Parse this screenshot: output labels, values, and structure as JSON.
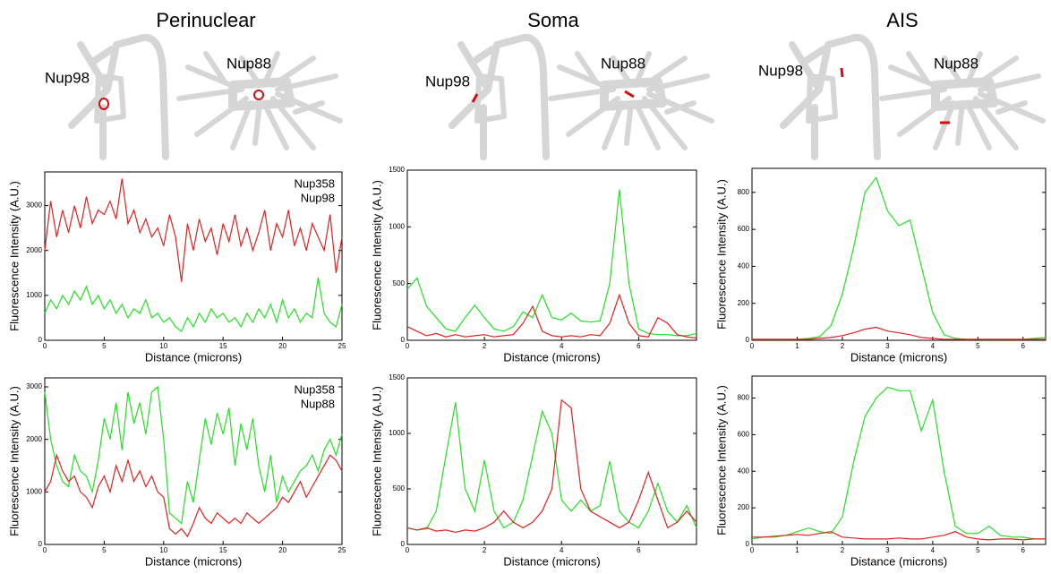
{
  "panel_titles": [
    "Perinuclear",
    "Soma",
    "AIS"
  ],
  "cell_labels": [
    [
      "Nup98",
      "Nup88"
    ],
    [
      "Nup98",
      "Nup88"
    ],
    [
      "Nup98",
      "Nup88"
    ]
  ],
  "chart_data": [
    {
      "type": "line",
      "xlabel": "Distance (microns)",
      "ylabel": "Fluorescence Intensity (A.U.)",
      "legend": "upper right",
      "x": [
        0,
        0.5,
        1,
        1.5,
        2,
        2.5,
        3,
        3.5,
        4,
        4.5,
        5,
        5.5,
        6,
        6.5,
        7,
        7.5,
        8,
        8.5,
        9,
        9.5,
        10,
        10.5,
        11,
        11.5,
        12,
        12.5,
        13,
        13.5,
        14,
        14.5,
        15,
        15.5,
        16,
        16.5,
        17,
        17.5,
        18,
        18.5,
        19,
        19.5,
        20,
        20.5,
        21,
        21.5,
        22,
        22.5,
        23,
        23.5,
        24,
        24.5,
        25
      ],
      "series": [
        {
          "name": "Nup358",
          "color": "#22e022",
          "values": [
            600,
            900,
            700,
            1000,
            800,
            1100,
            900,
            1200,
            800,
            1000,
            700,
            900,
            600,
            800,
            500,
            700,
            600,
            900,
            500,
            600,
            400,
            500,
            300,
            200,
            500,
            300,
            600,
            400,
            700,
            500,
            600,
            400,
            500,
            300,
            600,
            400,
            700,
            500,
            800,
            400,
            900,
            500,
            700,
            400,
            600,
            500,
            1400,
            600,
            400,
            300,
            800
          ]
        },
        {
          "name": "Nup98",
          "color": "#e02020",
          "values": [
            2000,
            3100,
            2300,
            2900,
            2400,
            3000,
            2500,
            3200,
            2600,
            2900,
            2800,
            3100,
            2700,
            3600,
            2600,
            2900,
            2400,
            2700,
            2300,
            2500,
            2100,
            2800,
            2300,
            1300,
            2600,
            2000,
            2700,
            2200,
            2500,
            1900,
            2600,
            2200,
            2800,
            2100,
            2500,
            2000,
            2400,
            2900,
            2000,
            2600,
            2300,
            2900,
            2100,
            2500,
            2000,
            2600,
            2300,
            2000,
            2800,
            1500,
            2300
          ]
        }
      ],
      "xlim": [
        0,
        25
      ],
      "xticks": [
        0,
        5,
        10,
        15,
        20,
        25
      ],
      "ylim": [
        0,
        3750
      ],
      "yticks": [
        0,
        1000,
        2000,
        3000
      ]
    },
    {
      "type": "line",
      "xlabel": "Distance (microns)",
      "ylabel": "Fluorescence Intensity (A.U.)",
      "x": [
        0,
        0.25,
        0.5,
        0.75,
        1,
        1.25,
        1.5,
        1.75,
        2,
        2.25,
        2.5,
        2.75,
        3,
        3.25,
        3.5,
        3.75,
        4,
        4.25,
        4.5,
        4.75,
        5,
        5.25,
        5.5,
        5.75,
        6,
        6.25,
        6.5,
        6.75,
        7,
        7.25,
        7.5
      ],
      "series": [
        {
          "color": "#22e022",
          "values": [
            450,
            550,
            300,
            200,
            100,
            80,
            200,
            310,
            200,
            100,
            80,
            120,
            250,
            200,
            400,
            200,
            180,
            240,
            170,
            160,
            170,
            500,
            1330,
            500,
            100,
            60,
            50,
            50,
            40,
            40,
            60
          ]
        },
        {
          "color": "#e02020",
          "values": [
            120,
            80,
            40,
            60,
            30,
            50,
            30,
            40,
            50,
            30,
            40,
            50,
            150,
            300,
            80,
            40,
            30,
            40,
            30,
            50,
            40,
            150,
            400,
            150,
            40,
            30,
            200,
            150,
            50,
            30,
            20
          ]
        }
      ],
      "xlim": [
        0,
        7.5
      ],
      "xticks": [
        0,
        2,
        4,
        6
      ],
      "ylim": [
        0,
        1500
      ],
      "yticks": [
        0,
        500,
        1000,
        1500
      ]
    },
    {
      "type": "line",
      "xlabel": "Distance (microns)",
      "ylabel": "Fluorescence Intensity (A.U.)",
      "x": [
        0,
        0.25,
        0.5,
        0.75,
        1,
        1.25,
        1.5,
        1.75,
        2,
        2.25,
        2.5,
        2.75,
        3,
        3.25,
        3.5,
        3.75,
        4,
        4.25,
        4.5,
        4.75,
        5,
        5.25,
        5.5,
        5.75,
        6,
        6.25,
        6.5
      ],
      "series": [
        {
          "color": "#22e022",
          "values": [
            5,
            5,
            5,
            5,
            5,
            10,
            20,
            80,
            250,
            500,
            800,
            880,
            700,
            620,
            650,
            400,
            150,
            30,
            10,
            5,
            5,
            5,
            5,
            5,
            5,
            10,
            15
          ]
        },
        {
          "color": "#e02020",
          "values": [
            5,
            5,
            5,
            5,
            5,
            5,
            10,
            15,
            25,
            40,
            60,
            70,
            50,
            40,
            30,
            15,
            10,
            5,
            5,
            5,
            5,
            5,
            5,
            5,
            5,
            5,
            5
          ]
        }
      ],
      "xlim": [
        0,
        6.5
      ],
      "xticks": [
        0,
        1,
        2,
        3,
        4,
        5,
        6
      ],
      "ylim": [
        0,
        930
      ],
      "yticks": [
        0,
        200,
        400,
        600,
        800
      ]
    },
    {
      "type": "line",
      "xlabel": "Distance (microns)",
      "ylabel": "Fluorescence Intensity (A.U.)",
      "legend": "upper right",
      "x": [
        0,
        0.5,
        1,
        1.5,
        2,
        2.5,
        3,
        3.5,
        4,
        4.5,
        5,
        5.5,
        6,
        6.5,
        7,
        7.5,
        8,
        8.5,
        9,
        9.5,
        10,
        10.5,
        11,
        11.5,
        12,
        12.5,
        13,
        13.5,
        14,
        14.5,
        15,
        15.5,
        16,
        16.5,
        17,
        17.5,
        18,
        18.5,
        19,
        19.5,
        20,
        20.5,
        21,
        21.5,
        22,
        22.5,
        23,
        23.5,
        24,
        24.5,
        25
      ],
      "series": [
        {
          "name": "Nup358",
          "color": "#22e022",
          "values": [
            2900,
            2000,
            1500,
            1200,
            1100,
            1700,
            1400,
            1300,
            1000,
            1600,
            2400,
            2000,
            2700,
            1800,
            2900,
            2300,
            2700,
            2100,
            2900,
            3000,
            2000,
            600,
            500,
            400,
            1200,
            800,
            1600,
            2400,
            1900,
            2500,
            2100,
            2600,
            1500,
            2300,
            1800,
            2400,
            1500,
            1000,
            1700,
            800,
            1300,
            1000,
            1200,
            1400,
            1500,
            1700,
            1400,
            1800,
            2000,
            1700,
            2100
          ]
        },
        {
          "name": "Nup88",
          "color": "#e02020",
          "values": [
            1000,
            1200,
            1700,
            1400,
            1200,
            1300,
            1000,
            900,
            700,
            1100,
            1300,
            1000,
            1500,
            1200,
            1600,
            1200,
            1400,
            1100,
            1300,
            1000,
            900,
            300,
            200,
            300,
            150,
            400,
            700,
            500,
            400,
            600,
            500,
            400,
            500,
            400,
            600,
            500,
            400,
            500,
            600,
            700,
            900,
            800,
            1000,
            1200,
            900,
            1100,
            1300,
            1500,
            1700,
            1600,
            1400
          ]
        }
      ],
      "xlim": [
        0,
        25
      ],
      "xticks": [
        0,
        5,
        10,
        15,
        20,
        25
      ],
      "ylim": [
        0,
        3170
      ],
      "yticks": [
        0,
        1000,
        2000,
        3000
      ]
    },
    {
      "type": "line",
      "xlabel": "Distance (microns)",
      "ylabel": "Fluorescence Intensity (A.U.)",
      "x": [
        0,
        0.25,
        0.5,
        0.75,
        1,
        1.25,
        1.5,
        1.75,
        2,
        2.25,
        2.5,
        2.75,
        3,
        3.25,
        3.5,
        3.75,
        4,
        4.25,
        4.5,
        4.75,
        5,
        5.25,
        5.5,
        5.75,
        6,
        6.25,
        6.5,
        6.75,
        7,
        7.25,
        7.5
      ],
      "series": [
        {
          "color": "#22e022",
          "values": [
            150,
            130,
            140,
            300,
            800,
            1280,
            500,
            300,
            760,
            300,
            150,
            200,
            400,
            800,
            1200,
            1000,
            400,
            300,
            400,
            300,
            350,
            750,
            300,
            200,
            150,
            300,
            550,
            300,
            200,
            350,
            150
          ]
        },
        {
          "color": "#e02020",
          "values": [
            150,
            130,
            150,
            120,
            130,
            110,
            130,
            120,
            150,
            200,
            300,
            200,
            150,
            200,
            300,
            500,
            1300,
            1230,
            500,
            300,
            250,
            200,
            150,
            200,
            400,
            650,
            400,
            150,
            200,
            300,
            200
          ]
        }
      ],
      "xlim": [
        0,
        7.5
      ],
      "xticks": [
        0,
        2,
        4,
        6
      ],
      "ylim": [
        0,
        1500
      ],
      "yticks": [
        0,
        500,
        1000,
        1500
      ]
    },
    {
      "type": "line",
      "xlabel": "Distance (microns)",
      "ylabel": "Fluorescence Intensity (A.U.)",
      "x": [
        0,
        0.25,
        0.5,
        0.75,
        1,
        1.25,
        1.5,
        1.75,
        2,
        2.25,
        2.5,
        2.75,
        3,
        3.25,
        3.5,
        3.75,
        4,
        4.25,
        4.5,
        4.75,
        5,
        5.25,
        5.5,
        5.75,
        6,
        6.25,
        6.5
      ],
      "series": [
        {
          "color": "#22e022",
          "values": [
            30,
            40,
            40,
            50,
            70,
            90,
            70,
            60,
            150,
            450,
            700,
            800,
            860,
            840,
            840,
            620,
            790,
            400,
            100,
            60,
            60,
            100,
            50,
            40,
            40,
            30,
            30
          ]
        },
        {
          "color": "#e02020",
          "values": [
            40,
            40,
            45,
            50,
            55,
            50,
            60,
            70,
            40,
            35,
            30,
            30,
            30,
            35,
            30,
            30,
            40,
            50,
            70,
            40,
            30,
            25,
            30,
            30,
            25,
            30,
            30
          ]
        }
      ],
      "xlim": [
        0,
        6.5
      ],
      "xticks": [
        0,
        1,
        2,
        3,
        4,
        5,
        6
      ],
      "ylim": [
        0,
        920
      ],
      "yticks": [
        0,
        200,
        400,
        600,
        800
      ]
    }
  ]
}
